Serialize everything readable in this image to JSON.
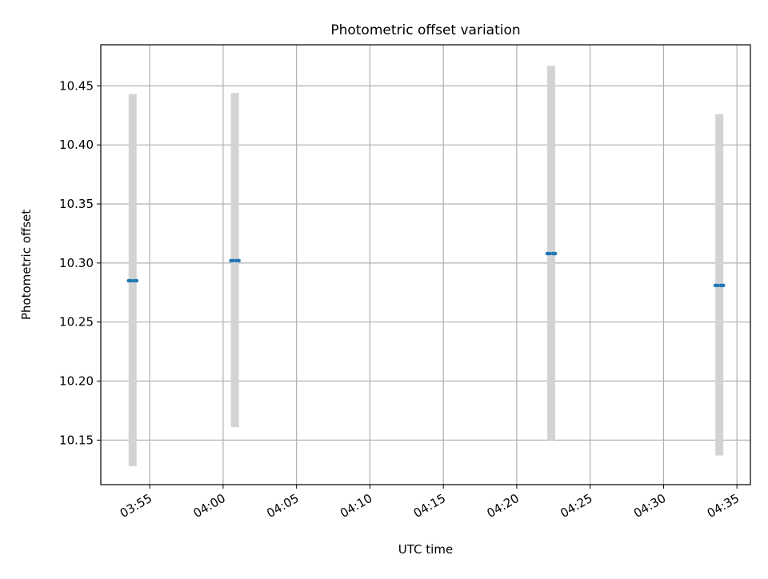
{
  "chart_data": {
    "type": "scatter",
    "title": "Photometric offset variation",
    "xlabel": "UTC time",
    "ylabel": "Photometric offset",
    "x_is_time": true,
    "xlim": [
      "03:51:40",
      "04:35:55"
    ],
    "ylim": [
      0.1123,
      0.4848
    ],
    "y_offset_base": 10,
    "xticks": [
      "03:55",
      "04:00",
      "04:05",
      "04:10",
      "04:15",
      "04:20",
      "04:25",
      "04:30",
      "04:35"
    ],
    "yticks": [
      "10.15",
      "10.20",
      "10.25",
      "10.30",
      "10.35",
      "10.40",
      "10.45"
    ],
    "grid": true,
    "colors": {
      "points": "#1f77b4",
      "errorbars": "#d3d3d3",
      "grid": "#b0b0b0"
    },
    "series": [
      {
        "x": [
          "03:53:50",
          "04:00:48",
          "04:22:21",
          "04:33:48"
        ],
        "y": [
          10.285,
          10.302,
          10.308,
          10.281
        ],
        "yerr_low": [
          10.128,
          10.161,
          10.15,
          10.137
        ],
        "yerr_high": [
          10.443,
          10.444,
          10.467,
          10.426
        ]
      }
    ]
  }
}
